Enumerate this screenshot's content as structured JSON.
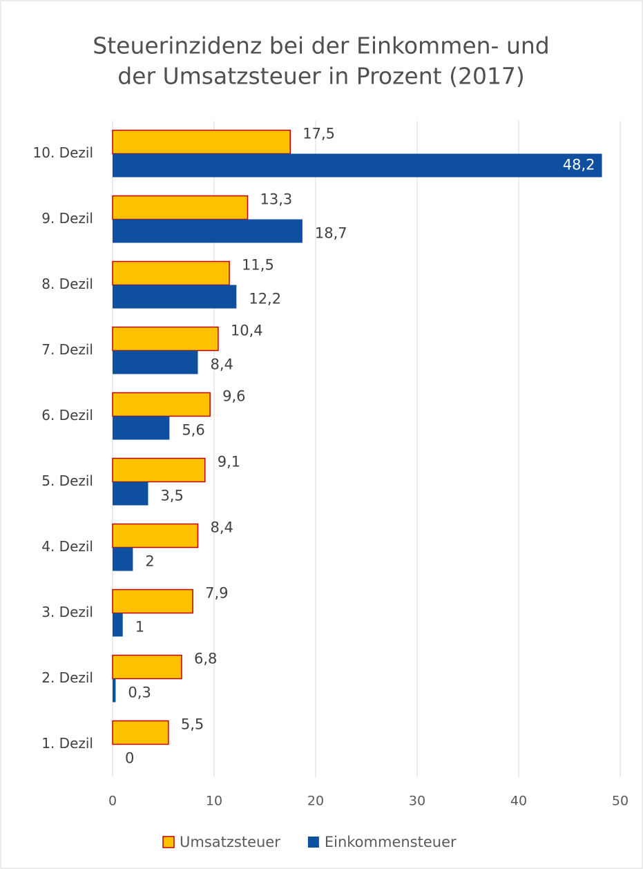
{
  "chart_data": {
    "type": "hbar",
    "title": [
      "Steuerinzidenz bei der Einkommen- und",
      "der Umsatzsteuer in Prozent (2017)"
    ],
    "categories": [
      "10. Dezil",
      "9. Dezil",
      "8. Dezil",
      "7. Dezil",
      "6. Dezil",
      "5. Dezil",
      "4. Dezil",
      "3. Dezil",
      "2. Dezil",
      "1. Dezil"
    ],
    "series": [
      {
        "name": "Umsatzsteuer",
        "color": "#FFC000",
        "border": "#C00000",
        "values": [
          17.5,
          13.3,
          11.5,
          10.4,
          9.6,
          9.1,
          8.4,
          7.9,
          6.8,
          5.5
        ],
        "value_labels": [
          "17,5",
          "13,3",
          "11,5",
          "10,4",
          "9,6",
          "9,1",
          "8,4",
          "7,9",
          "6,8",
          "5,5"
        ]
      },
      {
        "name": "Einkommensteuer",
        "color": "#0F4FA0",
        "values": [
          48.2,
          18.7,
          12.2,
          8.4,
          5.6,
          3.5,
          2,
          1,
          0.3,
          0
        ],
        "value_labels": [
          "48,2",
          "18,7",
          "12,2",
          "8,4",
          "5,6",
          "3,5",
          "2",
          "1",
          "0,3",
          "0"
        ]
      }
    ],
    "xlim": [
      0,
      50
    ],
    "xticks": [
      0,
      10,
      20,
      30,
      40,
      50
    ],
    "grid": true,
    "legend": "bottom"
  }
}
